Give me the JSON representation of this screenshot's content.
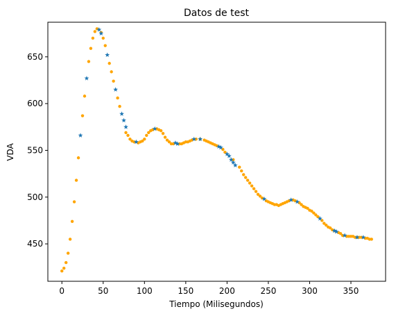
{
  "chart_data": {
    "type": "scatter",
    "title": "Datos de test",
    "xlabel": "Tiempo (Milisegundos)",
    "ylabel": "VDA",
    "xlim": [
      -17,
      392
    ],
    "ylim": [
      410,
      687
    ],
    "xticks": [
      "0",
      "50",
      "100",
      "150",
      "200",
      "250",
      "300",
      "350"
    ],
    "xtick_values": [
      0,
      50,
      100,
      150,
      200,
      250,
      300,
      350
    ],
    "yticks": [
      "450",
      "500",
      "550",
      "600",
      "650"
    ],
    "ytick_values": [
      450,
      500,
      550,
      600,
      650
    ],
    "grid": false,
    "legend": "none",
    "series": [
      {
        "marker": "dot",
        "color": "#ffa500",
        "points": [
          [
            0,
            421
          ],
          [
            2.5,
            424
          ],
          [
            5,
            430
          ],
          [
            7.5,
            440
          ],
          [
            10,
            455
          ],
          [
            12.5,
            474
          ],
          [
            15,
            495
          ],
          [
            17.5,
            518
          ],
          [
            20,
            542
          ],
          [
            25,
            587
          ],
          [
            27.5,
            608
          ],
          [
            32.5,
            645
          ],
          [
            35,
            659
          ],
          [
            37.5,
            670
          ],
          [
            40,
            677
          ],
          [
            42.5,
            680
          ],
          [
            47.5,
            676
          ],
          [
            50,
            670
          ],
          [
            52.5,
            662
          ],
          [
            57.5,
            643
          ],
          [
            60,
            634
          ],
          [
            62.5,
            624
          ],
          [
            67.5,
            606
          ],
          [
            70,
            597
          ],
          [
            77.5,
            569
          ],
          [
            80,
            566
          ],
          [
            82.5,
            562
          ],
          [
            85,
            560
          ],
          [
            87.5,
            559
          ],
          [
            92.5,
            558
          ],
          [
            95,
            559
          ],
          [
            97.5,
            560
          ],
          [
            100,
            562
          ],
          [
            102.5,
            566
          ],
          [
            105,
            569
          ],
          [
            107.5,
            571
          ],
          [
            110,
            572
          ],
          [
            115,
            573
          ],
          [
            117.5,
            572
          ],
          [
            120,
            571
          ],
          [
            122.5,
            568
          ],
          [
            125,
            564
          ],
          [
            127.5,
            561
          ],
          [
            130,
            559
          ],
          [
            132.5,
            557
          ],
          [
            135,
            557
          ],
          [
            142.5,
            557
          ],
          [
            145,
            557
          ],
          [
            147.5,
            558
          ],
          [
            150,
            559
          ],
          [
            152.5,
            559
          ],
          [
            155,
            560
          ],
          [
            157.5,
            561
          ],
          [
            162.5,
            562
          ],
          [
            167.5,
            562
          ],
          [
            172.5,
            561
          ],
          [
            175,
            560
          ],
          [
            177.5,
            559
          ],
          [
            180,
            558
          ],
          [
            182.5,
            557
          ],
          [
            185,
            556
          ],
          [
            187.5,
            555
          ],
          [
            195,
            551
          ],
          [
            197.5,
            548
          ],
          [
            207.5,
            540
          ],
          [
            215,
            532
          ],
          [
            217.5,
            528
          ],
          [
            220,
            524
          ],
          [
            222.5,
            521
          ],
          [
            225,
            518
          ],
          [
            227.5,
            515
          ],
          [
            230,
            512
          ],
          [
            232.5,
            509
          ],
          [
            235,
            506
          ],
          [
            237.5,
            503
          ],
          [
            240,
            501
          ],
          [
            242.5,
            499
          ],
          [
            247.5,
            496
          ],
          [
            250,
            495
          ],
          [
            252.5,
            494
          ],
          [
            255,
            493
          ],
          [
            257.5,
            492
          ],
          [
            260,
            492
          ],
          [
            262.5,
            491
          ],
          [
            265,
            492
          ],
          [
            267.5,
            493
          ],
          [
            270,
            494
          ],
          [
            272.5,
            495
          ],
          [
            275,
            496
          ],
          [
            280,
            497
          ],
          [
            282.5,
            496
          ],
          [
            287.5,
            494
          ],
          [
            290,
            492
          ],
          [
            292.5,
            490
          ],
          [
            295,
            489
          ],
          [
            297.5,
            488
          ],
          [
            300,
            486
          ],
          [
            302.5,
            485
          ],
          [
            305,
            483
          ],
          [
            307.5,
            481
          ],
          [
            310,
            479
          ],
          [
            315,
            475
          ],
          [
            317.5,
            472
          ],
          [
            320,
            470
          ],
          [
            322.5,
            468
          ],
          [
            325,
            467
          ],
          [
            327.5,
            465
          ],
          [
            330,
            464
          ],
          [
            335,
            462
          ],
          [
            337.5,
            461
          ],
          [
            340,
            459
          ],
          [
            345,
            458
          ],
          [
            347.5,
            458
          ],
          [
            350,
            458
          ],
          [
            352.5,
            458
          ],
          [
            355,
            457
          ],
          [
            357.5,
            457
          ],
          [
            360,
            457
          ],
          [
            362.5,
            457
          ],
          [
            367.5,
            456
          ],
          [
            370,
            456
          ],
          [
            372.5,
            455
          ],
          [
            375,
            455
          ]
        ]
      },
      {
        "marker": "star",
        "color": "#1f77b4",
        "points": [
          [
            22.5,
            566
          ],
          [
            30,
            627
          ],
          [
            45,
            679
          ],
          [
            47.5,
            675
          ],
          [
            55,
            652
          ],
          [
            65,
            615
          ],
          [
            72.5,
            589
          ],
          [
            75,
            582
          ],
          [
            77.5,
            575
          ],
          [
            90,
            559
          ],
          [
            112.5,
            573
          ],
          [
            140,
            557
          ],
          [
            137.5,
            558
          ],
          [
            160,
            562
          ],
          [
            167.5,
            562
          ],
          [
            190,
            554
          ],
          [
            192.5,
            553
          ],
          [
            200,
            546
          ],
          [
            202.5,
            544
          ],
          [
            205,
            540
          ],
          [
            207.5,
            537
          ],
          [
            210,
            534
          ],
          [
            245,
            498
          ],
          [
            277.5,
            497
          ],
          [
            285,
            495
          ],
          [
            312.5,
            477
          ],
          [
            330,
            464
          ],
          [
            332.5,
            463
          ],
          [
            342.5,
            459
          ],
          [
            357.5,
            457
          ],
          [
            365,
            457
          ]
        ]
      }
    ]
  }
}
